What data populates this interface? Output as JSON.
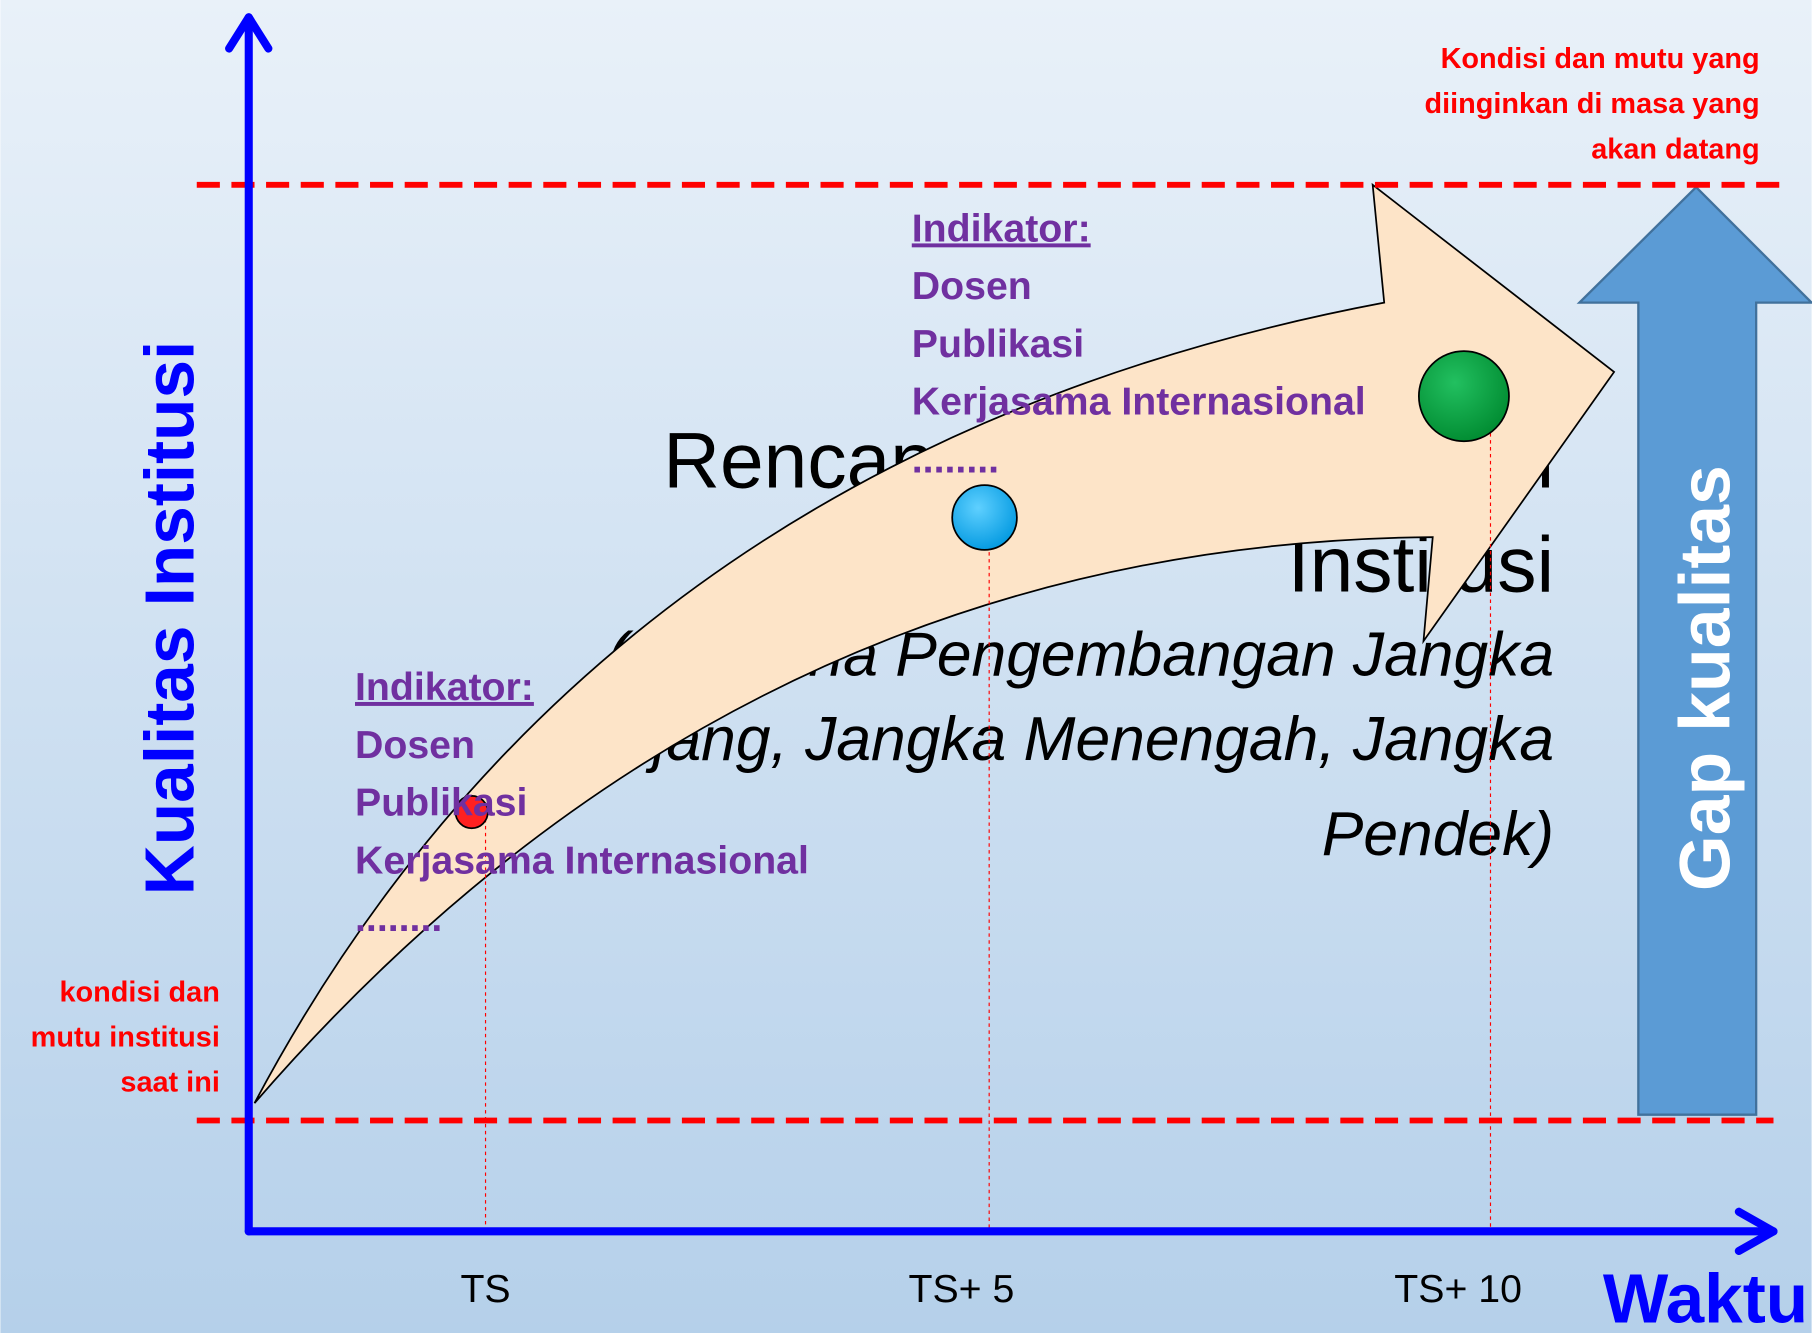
{
  "y_axis_label": "Kualitas Institusi",
  "x_axis_label": "Waktu",
  "current_condition": [
    "kondisi dan",
    "mutu institusi",
    "saat ini"
  ],
  "target_condition": [
    "Kondisi dan mutu yang",
    "diinginkan di masa yang",
    "akan datang"
  ],
  "gap_label": "Gap kualitas",
  "plan": {
    "title": [
      "Rencana Pengembangan",
      "Institusi"
    ],
    "subtitle": [
      "(Rencana Pengembangan Jangka",
      "Panjang, Jangka Menengah, Jangka",
      "Pendek)"
    ]
  },
  "milestones": [
    "TS",
    "TS+ 5",
    "TS+ 10"
  ],
  "indicators": [
    {
      "title": "Indikator:",
      "items": [
        "Dosen",
        "Publikasi",
        "Kerjasama Internasional",
        "........"
      ]
    },
    {
      "title": "Indikator:",
      "items": [
        "Dosen",
        "Publikasi",
        "Kerjasama Internasional",
        "........"
      ]
    }
  ]
}
